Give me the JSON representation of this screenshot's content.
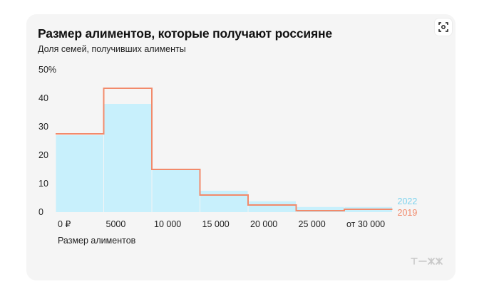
{
  "header": {
    "title": "Размер алиментов, которые получают россияне",
    "subtitle": "Доля семей, получивших алименты"
  },
  "chart_data": {
    "type": "bar",
    "title": "Размер алиментов, которые получают россияне",
    "subtitle": "Доля семей, получивших алименты",
    "xlabel": "Размер алиментов",
    "ylabel": "",
    "ylim": [
      0,
      50
    ],
    "y_ticks": [
      "0",
      "10",
      "20",
      "30",
      "40",
      "50%"
    ],
    "y_tick_values": [
      0,
      10,
      20,
      30,
      40,
      50
    ],
    "x_tick_labels": [
      "0 ₽",
      "5000",
      "10 000",
      "15 000",
      "20 000",
      "25 000",
      "от 30 000"
    ],
    "categories": [
      "0–5000",
      "5000–10 000",
      "10 000–15 000",
      "15 000–20 000",
      "20 000–25 000",
      "25 000–30 000",
      "от 30 000"
    ],
    "series": [
      {
        "name": "2022",
        "style": "filled-bars",
        "color": "#c8f0fc",
        "values": [
          27,
          38,
          15,
          7.5,
          3.8,
          1.8,
          1.8
        ]
      },
      {
        "name": "2019",
        "style": "step-line",
        "color": "#f28a6b",
        "values": [
          27.5,
          43.5,
          15,
          6,
          2.5,
          0.5,
          1
        ]
      }
    ],
    "grid": false,
    "legend": "right"
  },
  "colors": {
    "bar_fill": "#c8f0fc",
    "line": "#f28a6b",
    "legend_2022": "#7dd3ee",
    "legend_2019": "#f28a6b"
  },
  "toolbar": {
    "icon": "expand-icon"
  },
  "logo_icon": "tzh-logo-icon"
}
